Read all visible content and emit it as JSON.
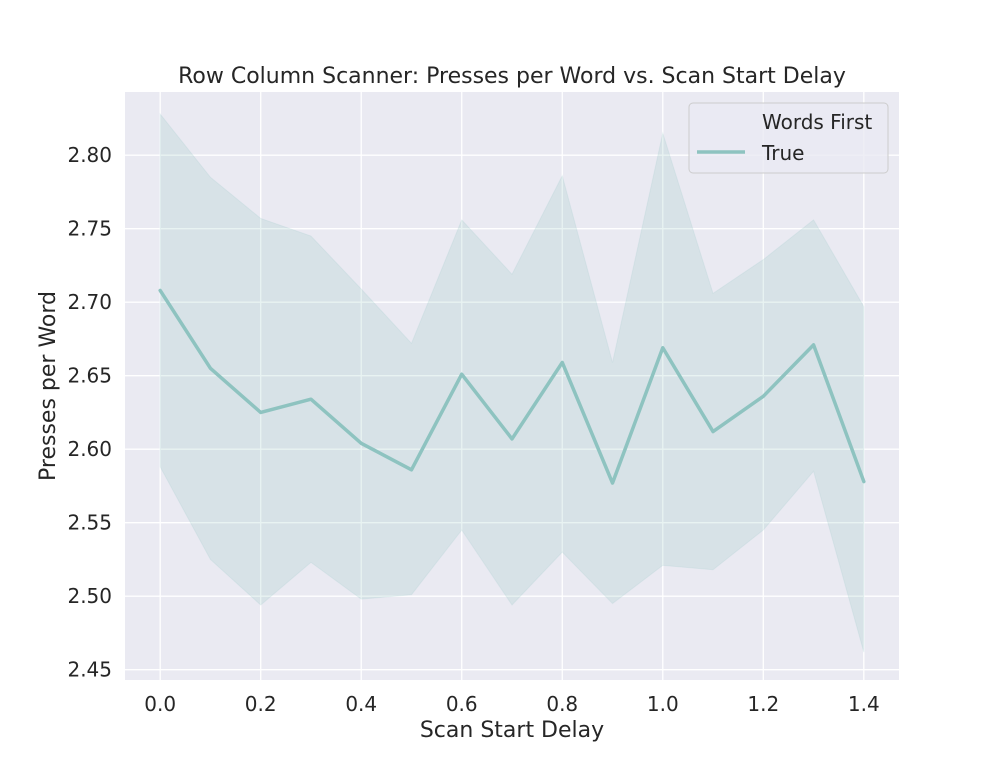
{
  "chart_data": {
    "type": "line",
    "title": "Row Column Scanner: Presses per Word vs. Scan Start Delay",
    "xlabel": "Scan Start Delay",
    "ylabel": "Presses per Word",
    "xlim": [
      -0.07,
      1.47
    ],
    "ylim": [
      2.443,
      2.843
    ],
    "xticks": [
      0.0,
      0.2,
      0.4,
      0.6,
      0.8,
      1.0,
      1.2,
      1.4
    ],
    "xtick_labels": [
      "0.0",
      "0.2",
      "0.4",
      "0.6",
      "0.8",
      "1.0",
      "1.2",
      "1.4"
    ],
    "yticks": [
      2.45,
      2.5,
      2.55,
      2.6,
      2.65,
      2.7,
      2.75,
      2.8
    ],
    "ytick_labels": [
      "2.45",
      "2.50",
      "2.55",
      "2.60",
      "2.65",
      "2.70",
      "2.75",
      "2.80"
    ],
    "grid": true,
    "legend": {
      "title": "Words First",
      "placement": "top-right"
    },
    "series": [
      {
        "name": "True",
        "color": "#8ec3c0",
        "x": [
          0.0,
          0.1,
          0.2,
          0.3,
          0.4,
          0.5,
          0.6,
          0.7,
          0.8,
          0.9,
          1.0,
          1.1,
          1.2,
          1.3,
          1.4
        ],
        "y": [
          2.708,
          2.655,
          2.625,
          2.634,
          2.604,
          2.586,
          2.651,
          2.607,
          2.659,
          2.577,
          2.669,
          2.612,
          2.636,
          2.671,
          2.578
        ],
        "ci_upper": [
          2.828,
          2.785,
          2.757,
          2.745,
          2.709,
          2.672,
          2.756,
          2.719,
          2.786,
          2.659,
          2.815,
          2.706,
          2.729,
          2.756,
          2.697
        ],
        "ci_lower": [
          2.588,
          2.525,
          2.494,
          2.523,
          2.498,
          2.501,
          2.545,
          2.494,
          2.53,
          2.495,
          2.521,
          2.518,
          2.545,
          2.585,
          2.462
        ]
      }
    ]
  }
}
